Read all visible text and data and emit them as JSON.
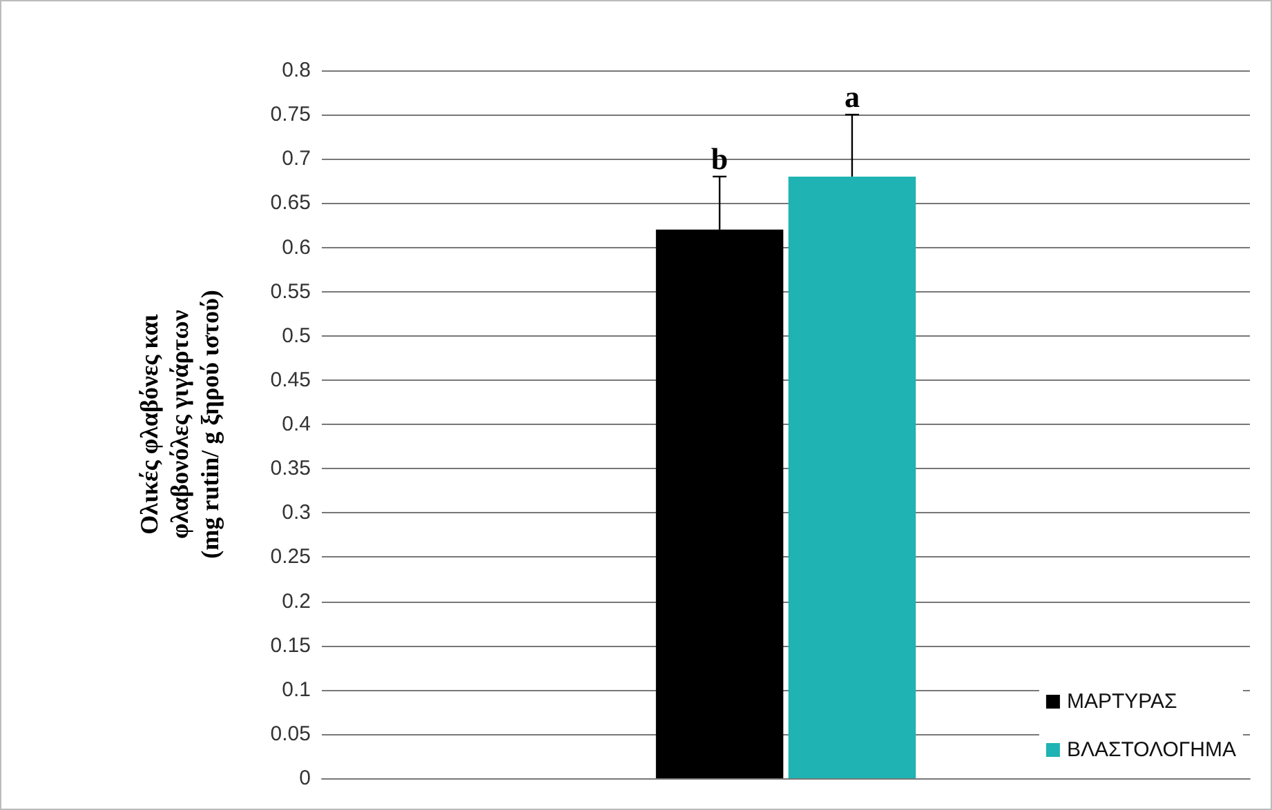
{
  "chart_data": {
    "type": "bar",
    "ylabel": "Ολικές φλαβόνες και\nφλαβονόλες γιγάρτων\n(mg rutin/ g ξηρού ιστού)",
    "categories": [
      null
    ],
    "series": [
      {
        "name": "ΜΑΡΤΥΡΑΣ",
        "color": "#000000",
        "values": [
          0.62
        ],
        "errors": [
          [
            0.62,
            0.68
          ]
        ]
      },
      {
        "name": "ΒΛΑΣΤΟΛΟΓΗΜΑ",
        "color": "#1fb3b3",
        "values": [
          0.68
        ],
        "errors": [
          [
            0.68,
            0.75
          ]
        ]
      }
    ],
    "annotations": [
      {
        "text": "b",
        "y": 0.68
      },
      {
        "text": "a",
        "y": 0.75
      }
    ],
    "ylim": [
      0,
      0.8
    ],
    "yticks": [
      0,
      0.05,
      0.1,
      0.15,
      0.2,
      0.25,
      0.3,
      0.35,
      0.4,
      0.45,
      0.5,
      0.55,
      0.6,
      0.65,
      0.7,
      0.75,
      0.8
    ],
    "grid": "y",
    "legend": "bottom right"
  }
}
